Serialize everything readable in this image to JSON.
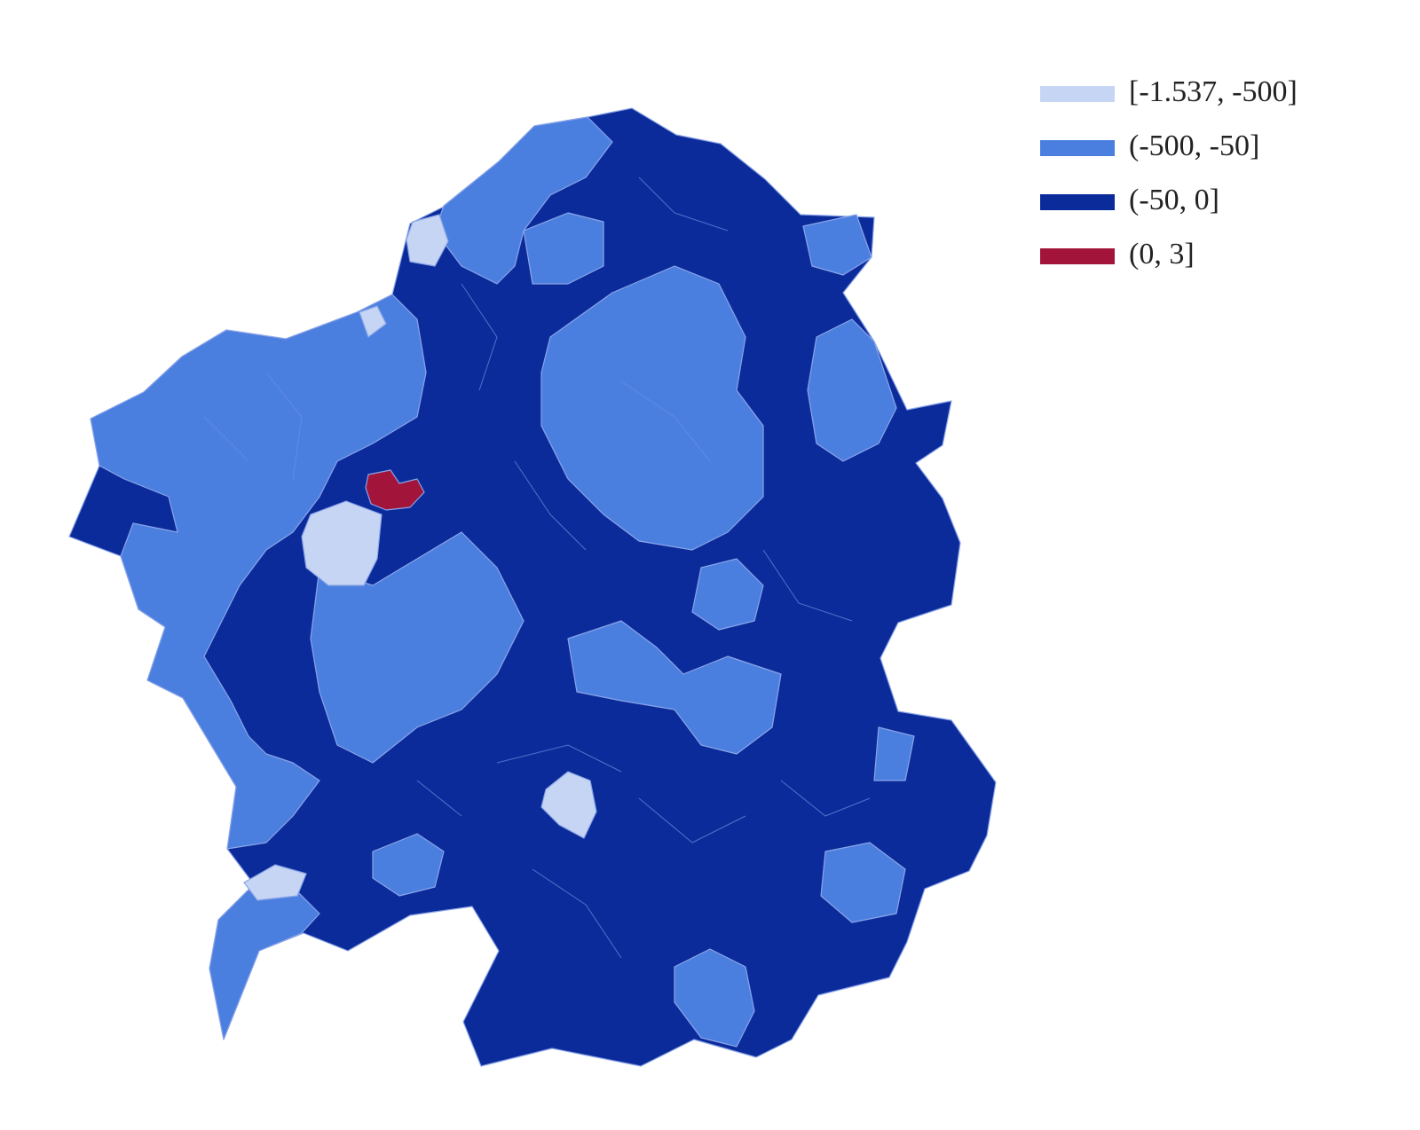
{
  "legend": {
    "items": [
      {
        "label": "[-1.537, -500]",
        "color": "#c5d5f3"
      },
      {
        "label": "(-500, -50]",
        "color": "#4a7fe0"
      },
      {
        "label": "(-50, 0]",
        "color": "#0c2b9a"
      },
      {
        "label": "(0, 3]",
        "color": "#a3143a"
      }
    ]
  }
}
